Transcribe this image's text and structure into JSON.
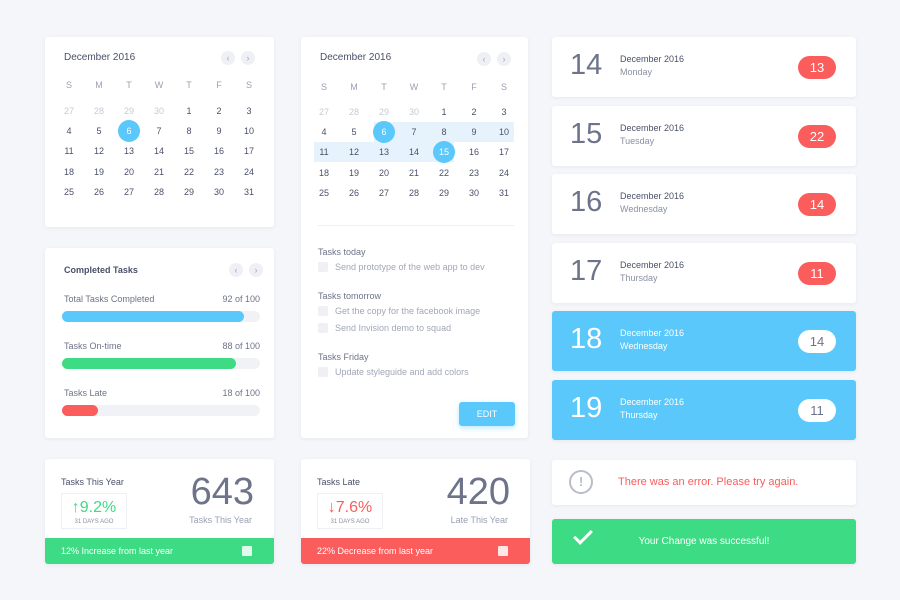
{
  "colors": {
    "accent": "#5ac8fa",
    "green": "#3ddc84",
    "red": "#fb5c5c",
    "text": "#5b6178"
  },
  "weekdays": [
    "S",
    "M",
    "T",
    "W",
    "T",
    "F",
    "S"
  ],
  "calendar1": {
    "title": "December 2016",
    "prev_icon": "chevron-left",
    "next_icon": "chevron-right",
    "selected": 6,
    "weeks": [
      [
        27,
        28,
        29,
        30,
        1,
        2,
        3
      ],
      [
        4,
        5,
        6,
        7,
        8,
        9,
        10
      ],
      [
        11,
        12,
        13,
        14,
        15,
        16,
        17
      ],
      [
        18,
        19,
        20,
        21,
        22,
        23,
        24
      ],
      [
        25,
        26,
        27,
        28,
        29,
        30,
        31
      ]
    ]
  },
  "calendar2": {
    "title": "December 2016",
    "range_start": 6,
    "range_end": 15,
    "weeks": [
      [
        27,
        28,
        29,
        30,
        1,
        2,
        3
      ],
      [
        4,
        5,
        6,
        7,
        8,
        9,
        10
      ],
      [
        11,
        12,
        13,
        14,
        15,
        16,
        17
      ],
      [
        18,
        19,
        20,
        21,
        22,
        23,
        24
      ],
      [
        25,
        26,
        27,
        28,
        29,
        30,
        31
      ]
    ]
  },
  "completed": {
    "title": "Completed Tasks",
    "items": [
      {
        "label": "Total Tasks Completed",
        "value": "92 of 100",
        "fraction": 0.92,
        "color": "#5ac8fa"
      },
      {
        "label": "Tasks On-time",
        "value": "88 of 100",
        "fraction": 0.88,
        "color": "#3ddc84"
      },
      {
        "label": "Tasks Late",
        "value": "18 of 100",
        "fraction": 0.18,
        "color": "#fb5c5c"
      }
    ]
  },
  "tasks": {
    "groups": [
      {
        "heading": "Tasks today",
        "items": [
          "Send prototype of the web app to dev"
        ]
      },
      {
        "heading": "Tasks tomorrow",
        "items": [
          "Get the copy for the facebook image",
          "Send Invision demo to squad"
        ]
      },
      {
        "heading": "Tasks Friday",
        "items": [
          "Update styleguide and add colors"
        ]
      }
    ],
    "edit_label": "EDIT"
  },
  "stats": [
    {
      "title": "Tasks This Year",
      "change": "↑9.2%",
      "ago": "31 DAYS AGO",
      "value": "643",
      "value_label": "Tasks This Year",
      "footer": "12% Increase from last year",
      "color": "#3ddc84"
    },
    {
      "title": "Tasks Late",
      "change": "↓7.6%",
      "ago": "31 DAYS AGO",
      "value": "420",
      "value_label": "Late This Year",
      "footer": "22% Decrease from last year",
      "color": "#fb5c5c"
    }
  ],
  "days": [
    {
      "num": "14",
      "month": "December 2016",
      "weekday": "Monday",
      "count": "13",
      "active": false
    },
    {
      "num": "15",
      "month": "December 2016",
      "weekday": "Tuesday",
      "count": "22",
      "active": false
    },
    {
      "num": "16",
      "month": "December 2016",
      "weekday": "Wednesday",
      "count": "14",
      "active": false
    },
    {
      "num": "17",
      "month": "December 2016",
      "weekday": "Thursday",
      "count": "11",
      "active": false
    },
    {
      "num": "18",
      "month": "December 2016",
      "weekday": "Wednesday",
      "count": "14",
      "active": true
    },
    {
      "num": "19",
      "month": "December 2016",
      "weekday": "Thursday",
      "count": "11",
      "active": true
    }
  ],
  "alerts": {
    "error": "There was an error. Please try again.",
    "success": "Your Change was successful!"
  }
}
